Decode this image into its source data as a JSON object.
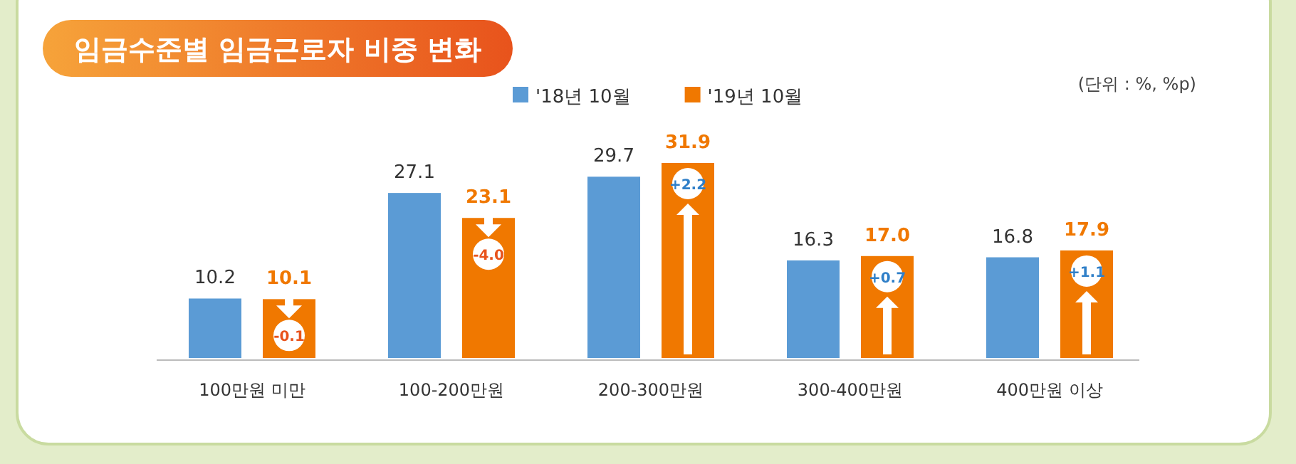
{
  "chart_data": {
    "type": "bar",
    "title": "임금수준별 임금근로자 비중 변화",
    "categories": [
      "100만원 미만",
      "100-200만원",
      "200-300만원",
      "300-400만원",
      "400만원 이상"
    ],
    "series": [
      {
        "name": "'18년 10월",
        "color": "#5b9bd5",
        "values": [
          10.2,
          27.1,
          29.7,
          16.3,
          16.8
        ],
        "value_labels": [
          "10.2",
          "27.1",
          "29.7",
          "16.3",
          "16.8"
        ]
      },
      {
        "name": "'19년 10월",
        "color": "#f07800",
        "values": [
          10.1,
          23.1,
          31.9,
          17.0,
          17.9
        ],
        "value_labels": [
          "10.1",
          "23.1",
          "31.9",
          "17.0",
          "17.9"
        ]
      }
    ],
    "legend": "top",
    "annotations": [
      "(단위 : %, %p)",
      "-0.1",
      "-4.0",
      "+2.2",
      "+0.7",
      "+1.1"
    ]
  }
}
